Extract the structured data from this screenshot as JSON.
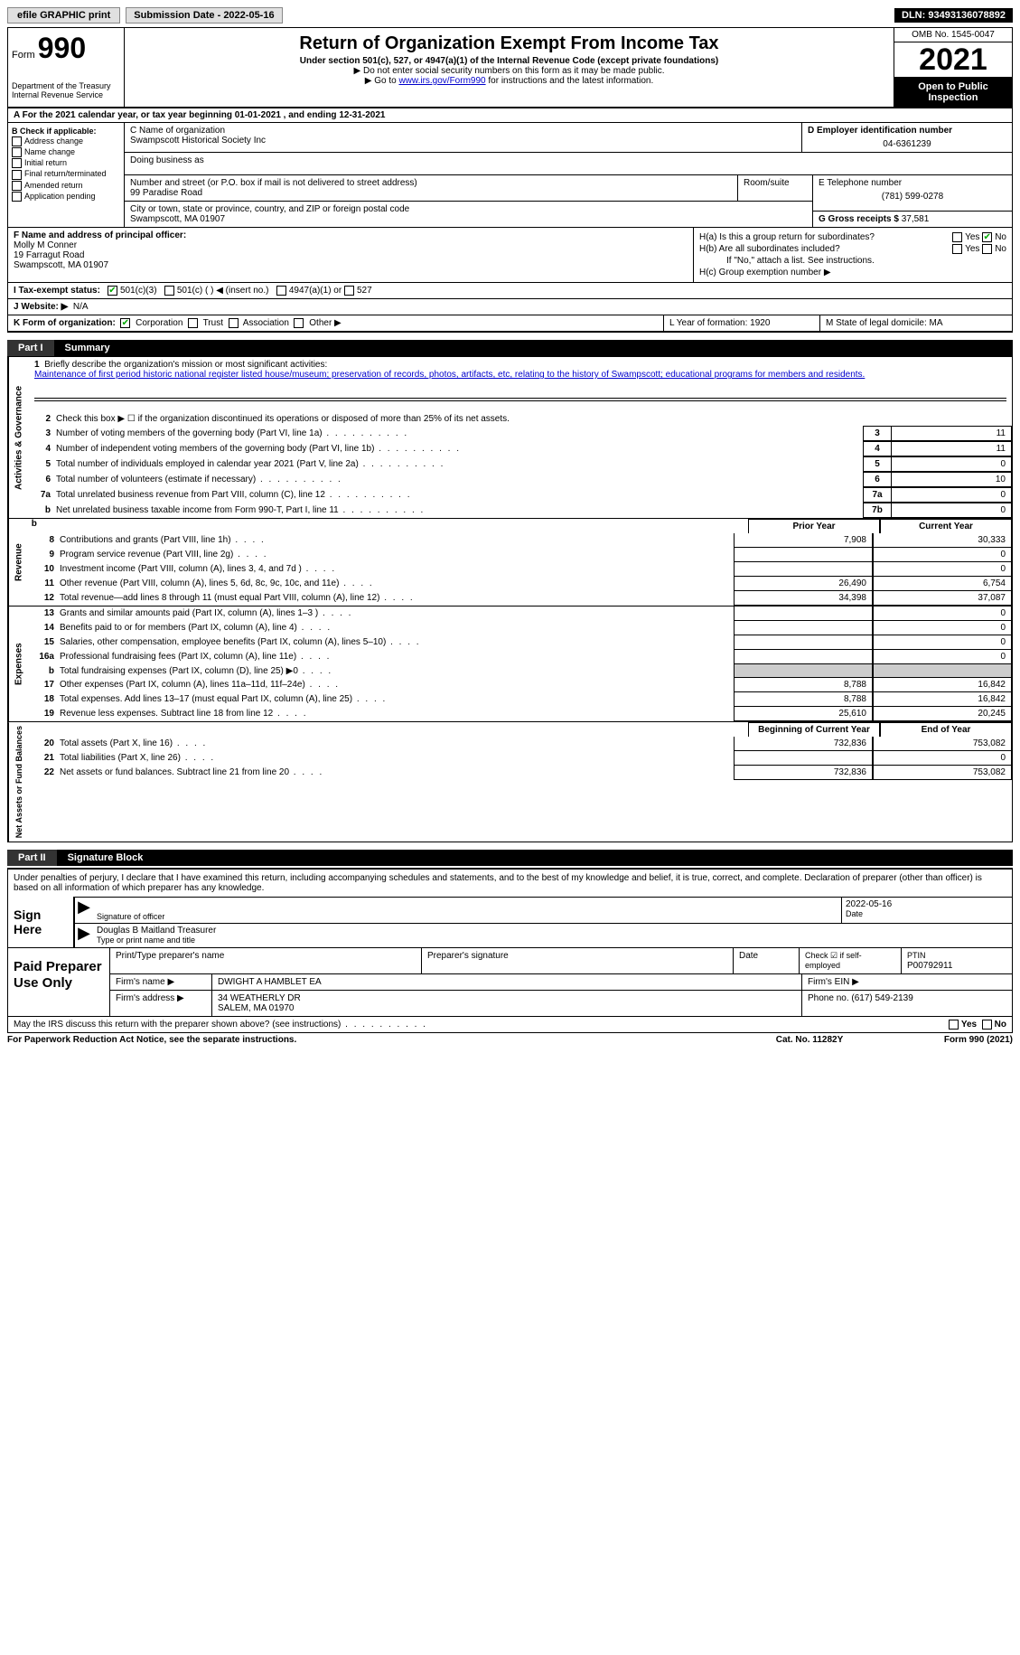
{
  "topbar": {
    "efile": "efile GRAPHIC print",
    "submission": "Submission Date - 2022-05-16",
    "dln": "DLN: 93493136078892"
  },
  "header": {
    "form_prefix": "Form",
    "form_num": "990",
    "dept": "Department of the Treasury",
    "irs": "Internal Revenue Service",
    "title": "Return of Organization Exempt From Income Tax",
    "subtitle": "Under section 501(c), 527, or 4947(a)(1) of the Internal Revenue Code (except private foundations)",
    "note1": "▶ Do not enter social security numbers on this form as it may be made public.",
    "note2_pre": "▶ Go to ",
    "note2_link": "www.irs.gov/Form990",
    "note2_post": " for instructions and the latest information.",
    "omb": "OMB No. 1545-0047",
    "year": "2021",
    "inspection": "Open to Public Inspection"
  },
  "row_a": "A For the 2021 calendar year, or tax year beginning 01-01-2021   , and ending 12-31-2021",
  "col_b": {
    "header": "B Check if applicable:",
    "opts": [
      "Address change",
      "Name change",
      "Initial return",
      "Final return/terminated",
      "Amended return",
      "Application pending"
    ]
  },
  "col_c": {
    "name_label": "C Name of organization",
    "name": "Swampscott Historical Society Inc",
    "dba_label": "Doing business as",
    "street_label": "Number and street (or P.O. box if mail is not delivered to street address)",
    "street": "99 Paradise Road",
    "room_label": "Room/suite",
    "city_label": "City or town, state or province, country, and ZIP or foreign postal code",
    "city": "Swampscott, MA  01907"
  },
  "col_d": {
    "ein_label": "D Employer identification number",
    "ein": "04-6361239",
    "phone_label": "E Telephone number",
    "phone": "(781) 599-0278",
    "gross_label": "G Gross receipts $",
    "gross": "37,581"
  },
  "section_f": {
    "label": "F Name and address of principal officer:",
    "name": "Molly M Conner",
    "addr1": "19 Farragut Road",
    "addr2": "Swampscott, MA  01907",
    "ha": "H(a)  Is this a group return for subordinates?",
    "hb": "H(b)  Are all subordinates included?",
    "hb_note": "If \"No,\" attach a list. See instructions.",
    "hc": "H(c)  Group exemption number ▶"
  },
  "section_i": {
    "label": "I  Tax-exempt status:",
    "opt1": "501(c)(3)",
    "opt2": "501(c) (  ) ◀ (insert no.)",
    "opt3": "4947(a)(1) or",
    "opt4": "527"
  },
  "section_j": {
    "label": "J  Website: ▶",
    "value": "N/A"
  },
  "section_k": {
    "label": "K Form of organization:",
    "opts": [
      "Corporation",
      "Trust",
      "Association",
      "Other ▶"
    ],
    "l": "L Year of formation: 1920",
    "m": "M State of legal domicile: MA"
  },
  "part1": {
    "num": "Part I",
    "title": "Summary"
  },
  "summary": {
    "line1_label": "Briefly describe the organization's mission or most significant activities:",
    "line1_text": "Maintenance of first period historic national register listed house/museum; preservation of records, photos, artifacts, etc, relating to the history of Swampscott; educational programs for members and residents.",
    "line2": "Check this box ▶ ☐  if the organization discontinued its operations or disposed of more than 25% of its net assets.",
    "lines_gov": [
      {
        "n": "3",
        "t": "Number of voting members of the governing body (Part VI, line 1a)",
        "box": "3",
        "val": "11"
      },
      {
        "n": "4",
        "t": "Number of independent voting members of the governing body (Part VI, line 1b)",
        "box": "4",
        "val": "11"
      },
      {
        "n": "5",
        "t": "Total number of individuals employed in calendar year 2021 (Part V, line 2a)",
        "box": "5",
        "val": "0"
      },
      {
        "n": "6",
        "t": "Total number of volunteers (estimate if necessary)",
        "box": "6",
        "val": "10"
      },
      {
        "n": "7a",
        "t": "Total unrelated business revenue from Part VIII, column (C), line 12",
        "box": "7a",
        "val": "0"
      },
      {
        "n": "b",
        "t": "Net unrelated business taxable income from Form 990-T, Part I, line 11",
        "box": "7b",
        "val": "0"
      }
    ],
    "rev_hdr": {
      "c1": "Prior Year",
      "c2": "Current Year"
    },
    "lines_rev": [
      {
        "n": "8",
        "t": "Contributions and grants (Part VIII, line 1h)",
        "c1": "7,908",
        "c2": "30,333"
      },
      {
        "n": "9",
        "t": "Program service revenue (Part VIII, line 2g)",
        "c1": "",
        "c2": "0"
      },
      {
        "n": "10",
        "t": "Investment income (Part VIII, column (A), lines 3, 4, and 7d )",
        "c1": "",
        "c2": "0"
      },
      {
        "n": "11",
        "t": "Other revenue (Part VIII, column (A), lines 5, 6d, 8c, 9c, 10c, and 11e)",
        "c1": "26,490",
        "c2": "6,754"
      },
      {
        "n": "12",
        "t": "Total revenue—add lines 8 through 11 (must equal Part VIII, column (A), line 12)",
        "c1": "34,398",
        "c2": "37,087"
      }
    ],
    "lines_exp": [
      {
        "n": "13",
        "t": "Grants and similar amounts paid (Part IX, column (A), lines 1–3 )",
        "c1": "",
        "c2": "0"
      },
      {
        "n": "14",
        "t": "Benefits paid to or for members (Part IX, column (A), line 4)",
        "c1": "",
        "c2": "0"
      },
      {
        "n": "15",
        "t": "Salaries, other compensation, employee benefits (Part IX, column (A), lines 5–10)",
        "c1": "",
        "c2": "0"
      },
      {
        "n": "16a",
        "t": "Professional fundraising fees (Part IX, column (A), line 11e)",
        "c1": "",
        "c2": "0"
      },
      {
        "n": "b",
        "t": "Total fundraising expenses (Part IX, column (D), line 25) ▶0",
        "c1": "shade",
        "c2": "shade"
      },
      {
        "n": "17",
        "t": "Other expenses (Part IX, column (A), lines 11a–11d, 11f–24e)",
        "c1": "8,788",
        "c2": "16,842"
      },
      {
        "n": "18",
        "t": "Total expenses. Add lines 13–17 (must equal Part IX, column (A), line 25)",
        "c1": "8,788",
        "c2": "16,842"
      },
      {
        "n": "19",
        "t": "Revenue less expenses. Subtract line 18 from line 12",
        "c1": "25,610",
        "c2": "20,245"
      }
    ],
    "na_hdr": {
      "c1": "Beginning of Current Year",
      "c2": "End of Year"
    },
    "lines_na": [
      {
        "n": "20",
        "t": "Total assets (Part X, line 16)",
        "c1": "732,836",
        "c2": "753,082"
      },
      {
        "n": "21",
        "t": "Total liabilities (Part X, line 26)",
        "c1": "",
        "c2": "0"
      },
      {
        "n": "22",
        "t": "Net assets or fund balances. Subtract line 21 from line 20",
        "c1": "732,836",
        "c2": "753,082"
      }
    ],
    "vtabs": {
      "gov": "Activities & Governance",
      "rev": "Revenue",
      "exp": "Expenses",
      "na": "Net Assets or Fund Balances"
    }
  },
  "part2": {
    "num": "Part II",
    "title": "Signature Block"
  },
  "sig": {
    "decl": "Under penalties of perjury, I declare that I have examined this return, including accompanying schedules and statements, and to the best of my knowledge and belief, it is true, correct, and complete. Declaration of preparer (other than officer) is based on all information of which preparer has any knowledge.",
    "label": "Sign Here",
    "sig_of": "Signature of officer",
    "date": "2022-05-16",
    "date_label": "Date",
    "name": "Douglas B Maitland  Treasurer",
    "name_label": "Type or print name and title"
  },
  "prep": {
    "label": "Paid Preparer Use Only",
    "r1": {
      "a": "Print/Type preparer's name",
      "b": "Preparer's signature",
      "c": "Date",
      "d": "Check ☑ if self-employed",
      "e": "PTIN",
      "ptin": "P00792911"
    },
    "r2": {
      "a": "Firm's name   ▶",
      "b": "DWIGHT A HAMBLET EA",
      "c": "Firm's EIN ▶"
    },
    "r3": {
      "a": "Firm's address ▶",
      "b": "34 WEATHERLY DR",
      "b2": "SALEM, MA  01970",
      "c": "Phone no. (617) 549-2139"
    }
  },
  "discuss": "May the IRS discuss this return with the preparer shown above? (see instructions)",
  "footer": {
    "l": "For Paperwork Reduction Act Notice, see the separate instructions.",
    "m": "Cat. No. 11282Y",
    "r": "Form 990 (2021)"
  }
}
